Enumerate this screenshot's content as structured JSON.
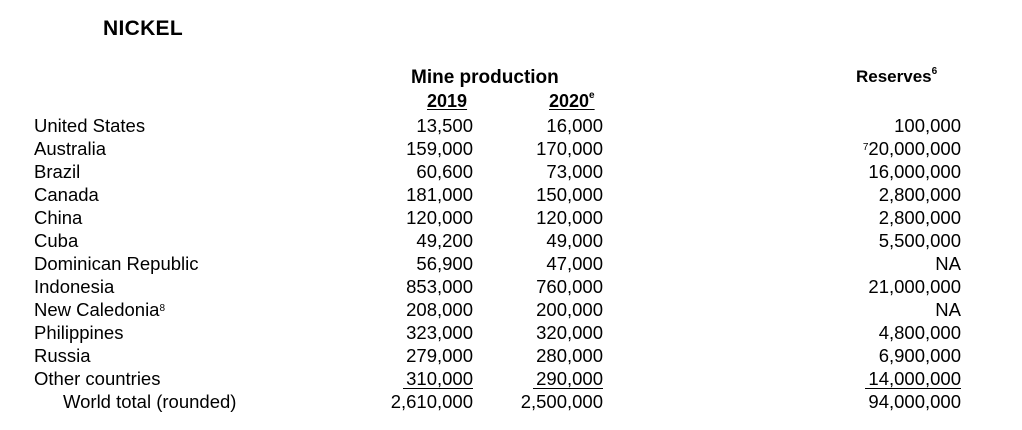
{
  "title": "NICKEL",
  "headers": {
    "mine_production": "Mine production",
    "year_2019": "2019",
    "year_2020": "2020",
    "year_2020_sup": "e",
    "reserves": "Reserves",
    "reserves_sup": "6"
  },
  "rows": [
    {
      "country": "United States",
      "country_sup": "",
      "p2019": "13,500",
      "p2020": "16,000",
      "reserves_sup": "",
      "reserves": "100,000"
    },
    {
      "country": "Australia",
      "country_sup": "",
      "p2019": "159,000",
      "p2020": "170,000",
      "reserves_sup": "7",
      "reserves": "20,000,000"
    },
    {
      "country": "Brazil",
      "country_sup": "",
      "p2019": "60,600",
      "p2020": "73,000",
      "reserves_sup": "",
      "reserves": "16,000,000"
    },
    {
      "country": "Canada",
      "country_sup": "",
      "p2019": "181,000",
      "p2020": "150,000",
      "reserves_sup": "",
      "reserves": "2,800,000"
    },
    {
      "country": "China",
      "country_sup": "",
      "p2019": "120,000",
      "p2020": "120,000",
      "reserves_sup": "",
      "reserves": "2,800,000"
    },
    {
      "country": "Cuba",
      "country_sup": "",
      "p2019": "49,200",
      "p2020": "49,000",
      "reserves_sup": "",
      "reserves": "5,500,000"
    },
    {
      "country": "Dominican Republic",
      "country_sup": "",
      "p2019": "56,900",
      "p2020": "47,000",
      "reserves_sup": "",
      "reserves": "NA"
    },
    {
      "country": "Indonesia",
      "country_sup": "",
      "p2019": "853,000",
      "p2020": "760,000",
      "reserves_sup": "",
      "reserves": "21,000,000"
    },
    {
      "country": "New Caledonia",
      "country_sup": "8",
      "p2019": "208,000",
      "p2020": "200,000",
      "reserves_sup": "",
      "reserves": "NA"
    },
    {
      "country": "Philippines",
      "country_sup": "",
      "p2019": "323,000",
      "p2020": "320,000",
      "reserves_sup": "",
      "reserves": "4,800,000"
    },
    {
      "country": "Russia",
      "country_sup": "",
      "p2019": "279,000",
      "p2020": "280,000",
      "reserves_sup": "",
      "reserves": "6,900,000"
    },
    {
      "country": "Other countries",
      "country_sup": "",
      "p2019": "310,000",
      "p2020": "290,000",
      "reserves_sup": "",
      "reserves": "14,000,000"
    }
  ],
  "total": {
    "country": "World total (rounded)",
    "p2019": "2,610,000",
    "p2020": "2,500,000",
    "reserves": "94,000,000"
  }
}
